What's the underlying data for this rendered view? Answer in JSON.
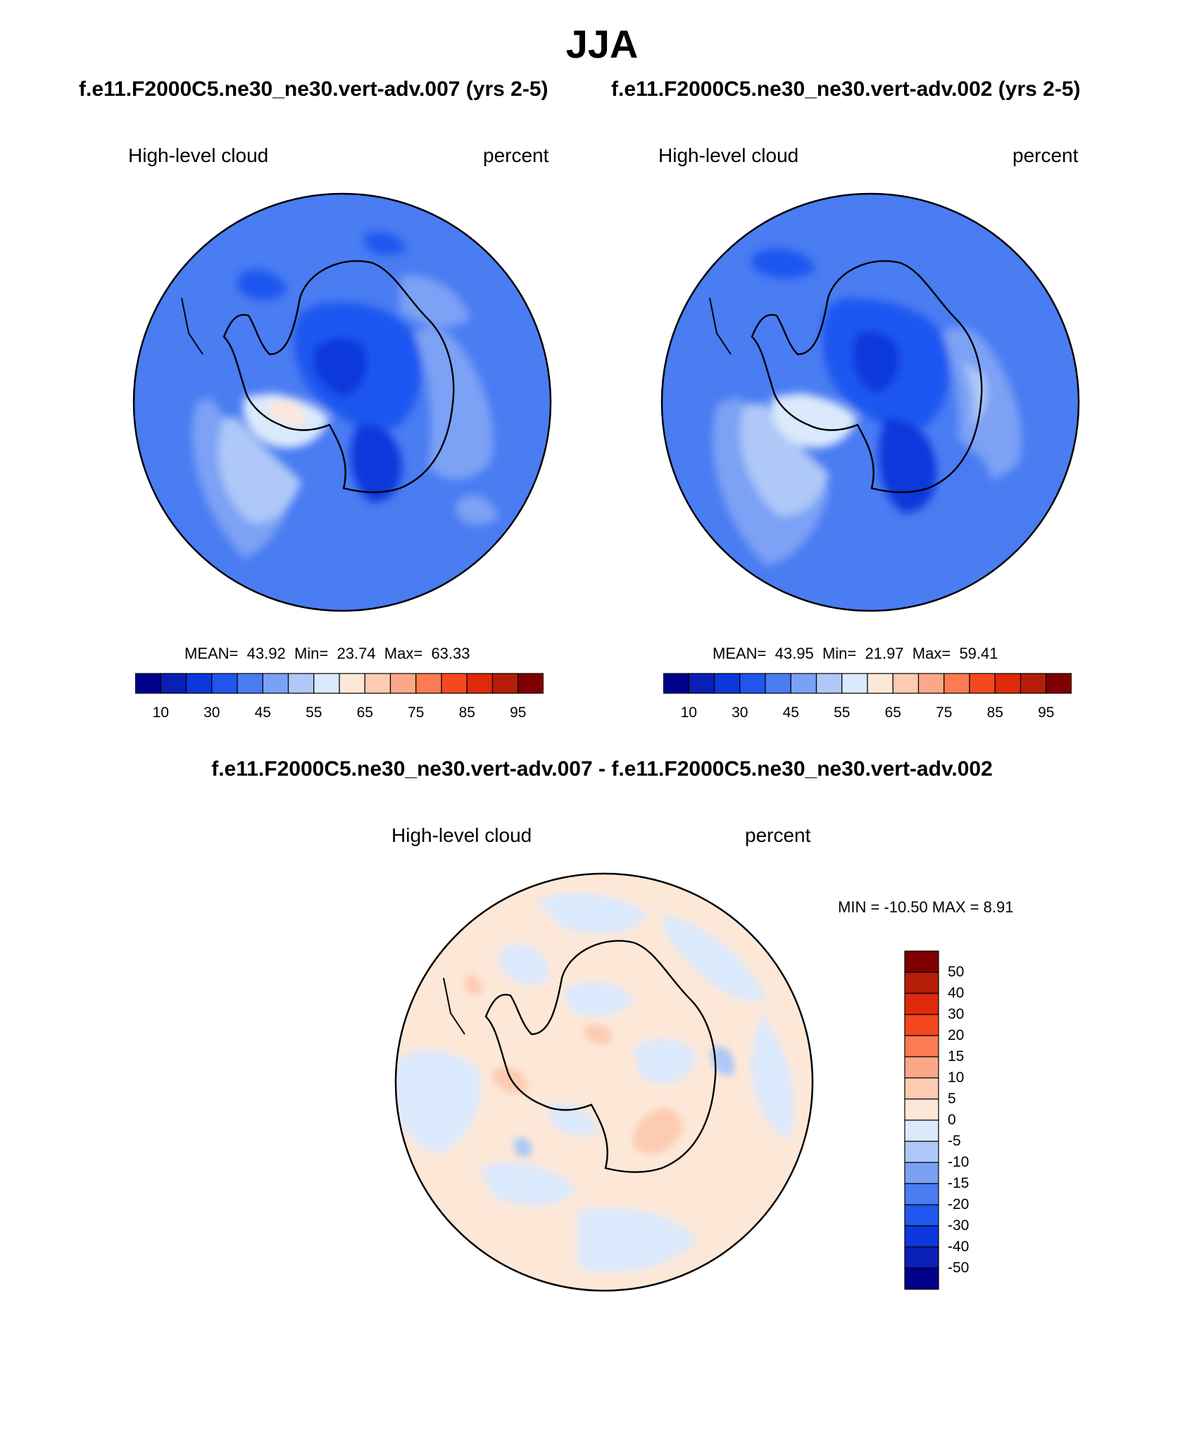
{
  "title": "JJA",
  "panels": [
    {
      "case_title": "f.e11.F2000C5.ne30_ne30.vert-adv.007 (yrs 2-5)",
      "variable_label": "High-level cloud",
      "units_label": "percent",
      "stats": {
        "mean_label": "MEAN=",
        "mean": "43.92",
        "min_label": "Min=",
        "min": "23.74",
        "max_label": "Max=",
        "max": "63.33"
      }
    },
    {
      "case_title": "f.e11.F2000C5.ne30_ne30.vert-adv.002 (yrs 2-5)",
      "variable_label": "High-level cloud",
      "units_label": "percent",
      "stats": {
        "mean_label": "MEAN=",
        "mean": "43.95",
        "min_label": "Min=",
        "min": "21.97",
        "max_label": "Max=",
        "max": "59.41"
      }
    }
  ],
  "diff_panel": {
    "title": "f.e11.F2000C5.ne30_ne30.vert-adv.007 - f.e11.F2000C5.ne30_ne30.vert-adv.002",
    "variable_label": "High-level cloud",
    "units_label": "percent",
    "minmax_text": "MIN = -10.50 MAX =   8.91"
  },
  "colorbar_abs": {
    "ticks": [
      "10",
      "30",
      "45",
      "55",
      "65",
      "75",
      "85",
      "95"
    ],
    "colors": [
      "#00008b",
      "#0a1fb4",
      "#0b37dc",
      "#1f56f0",
      "#4a7cf2",
      "#7ba1f5",
      "#aec8f8",
      "#dbe9fc",
      "#fde8d8",
      "#fdcbb1",
      "#fca888",
      "#fb7c52",
      "#f4481f",
      "#de2a0b",
      "#b41e08",
      "#7f0000"
    ]
  },
  "colorbar_diff": {
    "ticks": [
      "50",
      "40",
      "30",
      "20",
      "15",
      "10",
      "5",
      "0",
      "-5",
      "-10",
      "-15",
      "-20",
      "-30",
      "-40",
      "-50"
    ],
    "colors": [
      "#7f0000",
      "#b41e08",
      "#de2a0b",
      "#f4481f",
      "#fb7c52",
      "#fca888",
      "#fdcbb1",
      "#fde8d8",
      "#dbe9fc",
      "#aec8f8",
      "#7ba1f5",
      "#4a7cf2",
      "#1f56f0",
      "#0b37dc",
      "#0a1fb4",
      "#00008b"
    ]
  }
}
